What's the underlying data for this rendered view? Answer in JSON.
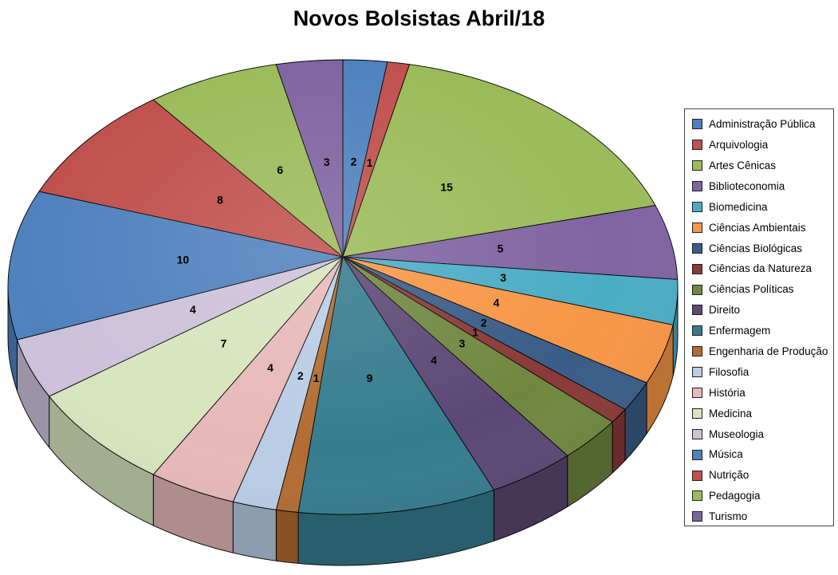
{
  "title": "Novos Bolsistas Abril/18",
  "chart_data": {
    "type": "pie",
    "title": "Novos Bolsistas Abril/18",
    "effect": "3d",
    "start_angle_deg": 0,
    "direction": "clockwise",
    "legend_position": "right",
    "data_labels": "values",
    "slices": [
      {
        "label": "Administração Pública",
        "value": 2,
        "color": "#4F81BD"
      },
      {
        "label": "Arquivologia",
        "value": 1,
        "color": "#C0504D"
      },
      {
        "label": "Artes Cênicas",
        "value": 15,
        "color": "#9BBB59"
      },
      {
        "label": "Biblioteconomia",
        "value": 5,
        "color": "#8064A2"
      },
      {
        "label": "Biomedicina",
        "value": 3,
        "color": "#4BACC6"
      },
      {
        "label": "Ciências Ambientais",
        "value": 4,
        "color": "#F79646"
      },
      {
        "label": "Ciências Biológicas",
        "value": 2,
        "color": "#395D88"
      },
      {
        "label": "Ciências da Natureza",
        "value": 1,
        "color": "#8A3A37"
      },
      {
        "label": "Ciências Políticas",
        "value": 3,
        "color": "#708740"
      },
      {
        "label": "Direito",
        "value": 4,
        "color": "#5C4875"
      },
      {
        "label": "Enfermagem",
        "value": 9,
        "color": "#367C8F"
      },
      {
        "label": "Engenharia de Produção",
        "value": 1,
        "color": "#B26C32"
      },
      {
        "label": "Filosofia",
        "value": 2,
        "color": "#B9CDE5"
      },
      {
        "label": "História",
        "value": 4,
        "color": "#E6B9B8"
      },
      {
        "label": "Medicina",
        "value": 7,
        "color": "#D7E4BD"
      },
      {
        "label": "Museologia",
        "value": 4,
        "color": "#CCC1DA"
      },
      {
        "label": "Música",
        "value": 10,
        "color": "#4F81BD"
      },
      {
        "label": "Nutrição",
        "value": 8,
        "color": "#C0504D"
      },
      {
        "label": "Pedagogia",
        "value": 6,
        "color": "#9BBB59"
      },
      {
        "label": "Turismo",
        "value": 3,
        "color": "#8064A2"
      }
    ]
  }
}
